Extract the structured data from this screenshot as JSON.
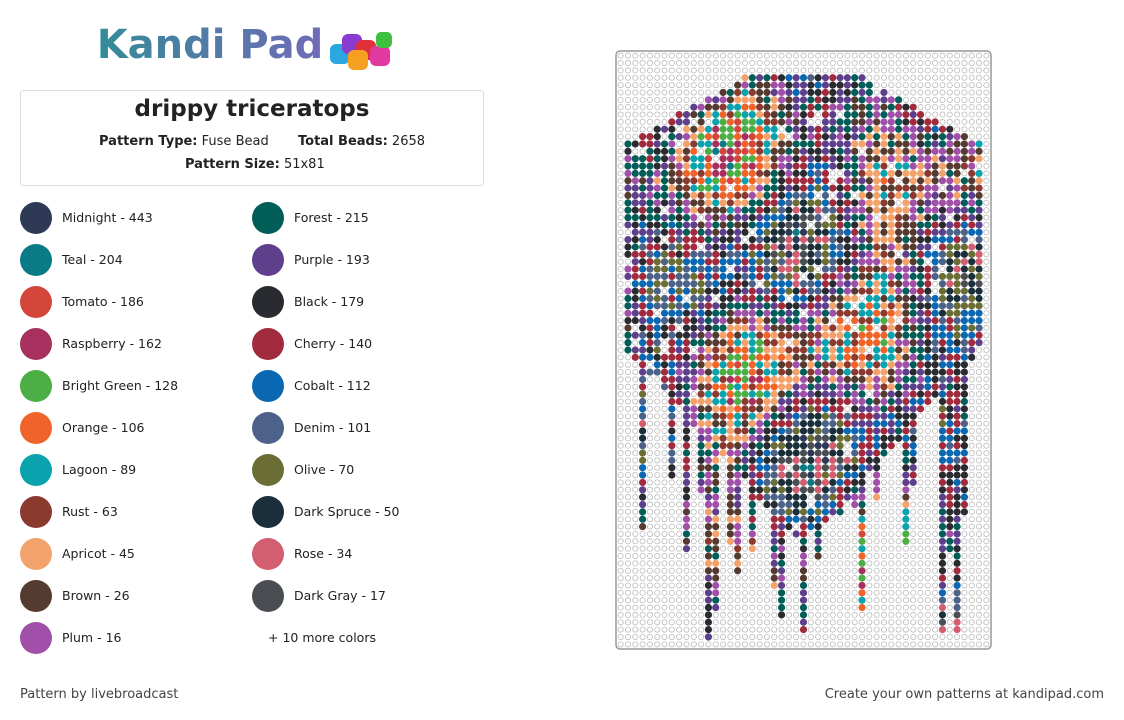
{
  "logo": {
    "text": "Kandi Pad"
  },
  "pattern": {
    "title": "drippy triceratops",
    "type_label": "Pattern Type:",
    "type_value": "Fuse Bead",
    "beads_label": "Total Beads:",
    "beads_value": 2658,
    "size_label": "Pattern Size:",
    "size_value": "51x81"
  },
  "colors": [
    {
      "label": "Midnight - 443",
      "color": "#2e3a55"
    },
    {
      "label": "Teal - 204",
      "color": "#087b86"
    },
    {
      "label": "Tomato - 186",
      "color": "#d4453a"
    },
    {
      "label": "Raspberry - 162",
      "color": "#a8305f"
    },
    {
      "label": "Bright Green - 128",
      "color": "#4caf45"
    },
    {
      "label": "Orange - 106",
      "color": "#f0642a"
    },
    {
      "label": "Lagoon - 89",
      "color": "#0aa3ad"
    },
    {
      "label": "Rust - 63",
      "color": "#8b3a30"
    },
    {
      "label": "Apricot - 45",
      "color": "#f3a26c"
    },
    {
      "label": "Brown - 26",
      "color": "#553a30"
    },
    {
      "label": "Plum - 16",
      "color": "#a050a8"
    },
    {
      "label": "Forest - 215",
      "color": "#005d57"
    },
    {
      "label": "Purple - 193",
      "color": "#5e3f8c"
    },
    {
      "label": "Black - 179",
      "color": "#2a2b30"
    },
    {
      "label": "Cherry - 140",
      "color": "#a12a3c"
    },
    {
      "label": "Cobalt - 112",
      "color": "#0a67b2"
    },
    {
      "label": "Denim - 101",
      "color": "#4c6288"
    },
    {
      "label": "Olive - 70",
      "color": "#6b6e34"
    },
    {
      "label": "Dark Spruce - 50",
      "color": "#1a2f3a"
    },
    {
      "label": "Rose - 34",
      "color": "#d35e70"
    },
    {
      "label": "Dark Gray - 17",
      "color": "#4a4d52"
    }
  ],
  "more_colors": "+ 10 more colors",
  "footer": {
    "author": "Pattern by livebroadcast",
    "cta": "Create your own patterns at kandipad.com"
  }
}
